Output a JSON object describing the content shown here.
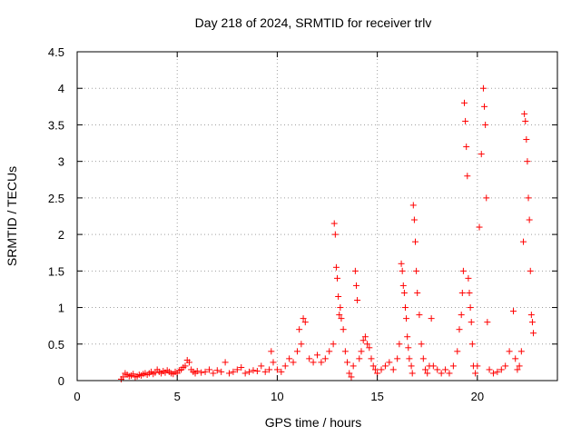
{
  "chart_data": {
    "type": "scatter",
    "title": "Day 218 of 2024, SRMTID for receiver trlv",
    "xlabel": "GPS time / hours",
    "ylabel": "SRMTID / TECUs",
    "xlim": [
      0,
      24
    ],
    "ylim": [
      0,
      4.5
    ],
    "xticks": [
      0,
      5,
      10,
      15,
      20
    ],
    "xtick_labels": [
      "0",
      "5",
      "10",
      "15",
      "20"
    ],
    "yticks": [
      0,
      0.5,
      1,
      1.5,
      2,
      2.5,
      3,
      3.5,
      4,
      4.5
    ],
    "ytick_labels": [
      "0",
      "0.5",
      "1",
      "1.5",
      "2",
      "2.5",
      "3",
      "3.5",
      "4",
      "4.5"
    ],
    "grid": true,
    "marker": "plus",
    "color": "#ff0000",
    "series": [
      {
        "name": "SRMTID",
        "x": [
          2.2,
          2.3,
          2.4,
          2.5,
          2.6,
          2.7,
          2.8,
          2.9,
          3.0,
          3.1,
          3.2,
          3.3,
          3.4,
          3.5,
          3.6,
          3.7,
          3.8,
          3.9,
          4.0,
          4.1,
          4.2,
          4.3,
          4.4,
          4.5,
          4.6,
          4.7,
          4.8,
          4.9,
          5.0,
          5.1,
          5.2,
          5.3,
          5.4,
          5.5,
          5.6,
          5.7,
          5.8,
          5.9,
          6.0,
          6.2,
          6.4,
          6.6,
          6.8,
          7.0,
          7.2,
          7.4,
          7.6,
          7.8,
          8.0,
          8.2,
          8.4,
          8.6,
          8.8,
          9.0,
          9.2,
          9.4,
          9.6,
          9.7,
          9.8,
          10.0,
          10.2,
          10.4,
          10.6,
          10.8,
          11.0,
          11.1,
          11.2,
          11.3,
          11.4,
          11.6,
          11.8,
          12.0,
          12.2,
          12.4,
          12.6,
          12.8,
          12.85,
          12.9,
          12.95,
          13.0,
          13.05,
          13.1,
          13.15,
          13.2,
          13.3,
          13.4,
          13.5,
          13.6,
          13.7,
          13.8,
          13.9,
          13.95,
          14.0,
          14.1,
          14.2,
          14.3,
          14.4,
          14.5,
          14.6,
          14.7,
          14.8,
          14.9,
          15.0,
          15.2,
          15.4,
          15.6,
          15.8,
          16.0,
          16.1,
          16.2,
          16.25,
          16.3,
          16.35,
          16.4,
          16.45,
          16.5,
          16.55,
          16.6,
          16.7,
          16.75,
          16.8,
          16.85,
          16.9,
          16.95,
          17.0,
          17.1,
          17.2,
          17.3,
          17.4,
          17.5,
          17.6,
          17.7,
          17.8,
          18.0,
          18.2,
          18.4,
          18.6,
          18.8,
          19.0,
          19.1,
          19.2,
          19.25,
          19.3,
          19.35,
          19.4,
          19.45,
          19.5,
          19.55,
          19.6,
          19.65,
          19.7,
          19.75,
          19.8,
          19.9,
          20.0,
          20.1,
          20.2,
          20.3,
          20.35,
          20.4,
          20.45,
          20.5,
          20.6,
          20.8,
          21.0,
          21.2,
          21.4,
          21.6,
          21.8,
          21.9,
          22.0,
          22.1,
          22.2,
          22.3,
          22.35,
          22.4,
          22.45,
          22.5,
          22.55,
          22.6,
          22.65,
          22.7,
          22.75,
          22.8
        ],
        "y": [
          0.02,
          0.05,
          0.1,
          0.08,
          0.06,
          0.07,
          0.09,
          0.05,
          0.06,
          0.08,
          0.07,
          0.09,
          0.1,
          0.08,
          0.1,
          0.12,
          0.09,
          0.11,
          0.15,
          0.12,
          0.1,
          0.13,
          0.11,
          0.14,
          0.12,
          0.1,
          0.09,
          0.12,
          0.1,
          0.14,
          0.15,
          0.18,
          0.2,
          0.28,
          0.25,
          0.15,
          0.12,
          0.1,
          0.13,
          0.11,
          0.12,
          0.15,
          0.1,
          0.14,
          0.12,
          0.25,
          0.1,
          0.12,
          0.15,
          0.18,
          0.1,
          0.12,
          0.14,
          0.13,
          0.2,
          0.12,
          0.15,
          0.4,
          0.25,
          0.15,
          0.12,
          0.2,
          0.3,
          0.25,
          0.4,
          0.7,
          0.5,
          0.85,
          0.8,
          0.3,
          0.25,
          0.35,
          0.25,
          0.3,
          0.4,
          0.5,
          2.15,
          2.0,
          1.55,
          1.4,
          1.15,
          0.9,
          1.0,
          0.85,
          0.7,
          0.4,
          0.25,
          0.1,
          0.05,
          0.2,
          1.5,
          1.3,
          1.1,
          0.3,
          0.4,
          0.55,
          0.6,
          0.5,
          0.45,
          0.3,
          0.2,
          0.15,
          0.1,
          0.15,
          0.2,
          0.25,
          0.15,
          0.3,
          0.5,
          1.6,
          1.5,
          1.3,
          1.2,
          1.0,
          0.85,
          0.6,
          0.45,
          0.3,
          0.2,
          0.1,
          2.4,
          2.2,
          1.9,
          1.5,
          1.2,
          0.9,
          0.5,
          0.3,
          0.15,
          0.1,
          0.2,
          0.85,
          0.2,
          0.15,
          0.1,
          0.15,
          0.1,
          0.2,
          0.4,
          0.7,
          0.9,
          1.2,
          1.5,
          3.8,
          3.55,
          3.2,
          2.8,
          1.4,
          1.2,
          1.0,
          0.8,
          0.5,
          0.2,
          0.1,
          0.2,
          2.1,
          3.1,
          4.0,
          3.75,
          3.5,
          2.5,
          0.8,
          0.15,
          0.1,
          0.12,
          0.15,
          0.2,
          0.4,
          0.95,
          0.3,
          0.15,
          0.2,
          0.4,
          1.9,
          3.65,
          3.55,
          3.3,
          3.0,
          2.5,
          2.2,
          1.5,
          0.9,
          0.8,
          0.65
        ]
      }
    ]
  }
}
